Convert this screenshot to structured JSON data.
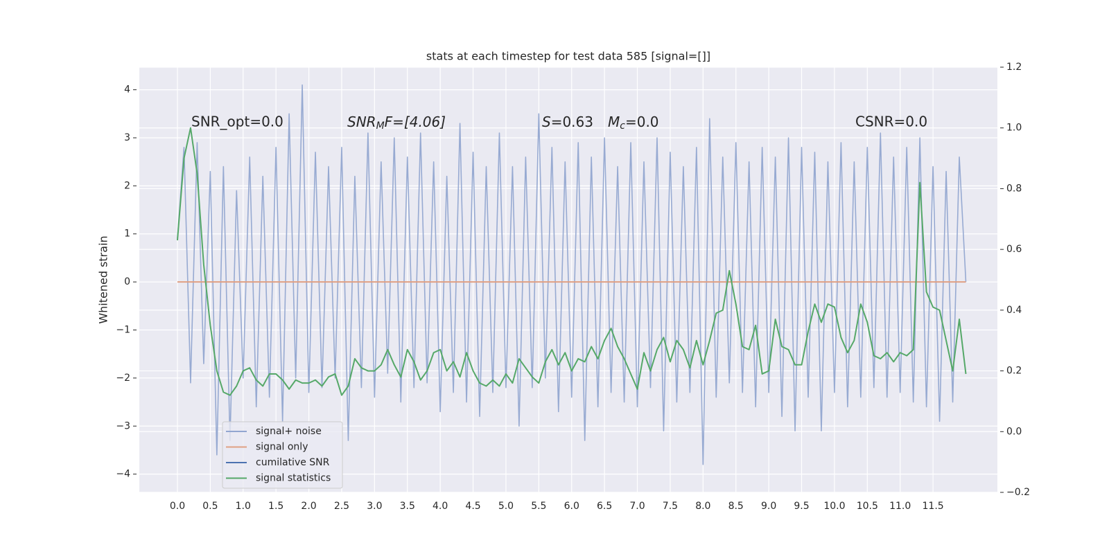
{
  "chart_data": {
    "type": "line",
    "title": "stats at each timestep for test data 585 [signal=[]]",
    "ylabel": "Whitened strain",
    "annotations": {
      "snr_opt": "SNR_opt=0.0",
      "snr_mf": [
        "SNR",
        "M",
        "F=[4.06]"
      ],
      "s": [
        "S",
        "=0.63"
      ],
      "mc": [
        "M",
        "c",
        "=0.0"
      ],
      "csnr": "CSNR=0.0"
    },
    "x": [
      0,
      0.1,
      0.2,
      0.3,
      0.4,
      0.5,
      0.6,
      0.7,
      0.8,
      0.9,
      1,
      1.1,
      1.2,
      1.3,
      1.4,
      1.5,
      1.6,
      1.7,
      1.8,
      1.9,
      2,
      2.1,
      2.2,
      2.3,
      2.4,
      2.5,
      2.6,
      2.7,
      2.8,
      2.9,
      3,
      3.1,
      3.2,
      3.3,
      3.4,
      3.5,
      3.6,
      3.7,
      3.8,
      3.9,
      4,
      4.1,
      4.2,
      4.3,
      4.4,
      4.5,
      4.6,
      4.7,
      4.8,
      4.9,
      5,
      5.1,
      5.2,
      5.3,
      5.4,
      5.5,
      5.6,
      5.7,
      5.8,
      5.9,
      6,
      6.1,
      6.2,
      6.3,
      6.4,
      6.5,
      6.6,
      6.7,
      6.8,
      6.9,
      7,
      7.1,
      7.2,
      7.3,
      7.4,
      7.5,
      7.6,
      7.7,
      7.8,
      7.9,
      8,
      8.1,
      8.2,
      8.3,
      8.4,
      8.5,
      8.6,
      8.7,
      8.8,
      8.9,
      9,
      9.1,
      9.2,
      9.3,
      9.4,
      9.5,
      9.6,
      9.7,
      9.8,
      9.9,
      10,
      10.1,
      10.2,
      10.3,
      10.4,
      10.5,
      10.6,
      10.7,
      10.8,
      10.9,
      11,
      11.1,
      11.2,
      11.3,
      11.4,
      11.5,
      11.6,
      11.7,
      11.8,
      11.9,
      12
    ],
    "series": [
      {
        "name": "signal+ noise",
        "color": "#92a6d0",
        "values": [
          0.9,
          2.8,
          -2.1,
          2.9,
          -1.7,
          2.3,
          -3.6,
          2.4,
          -3.3,
          1.9,
          -2.0,
          2.6,
          -2.6,
          2.2,
          -2.4,
          2.8,
          -2.9,
          3.5,
          -2.0,
          4.1,
          -2.3,
          2.7,
          -2.2,
          2.4,
          -2.0,
          2.8,
          -3.3,
          2.2,
          -2.2,
          3.1,
          -2.4,
          2.5,
          -1.9,
          3.0,
          -2.5,
          2.6,
          -2.2,
          3.1,
          -2.1,
          2.5,
          -2.7,
          2.2,
          -2.3,
          3.3,
          -2.5,
          2.7,
          -2.8,
          2.4,
          -2.3,
          3.1,
          -2.2,
          2.4,
          -3.0,
          2.6,
          -2.2,
          3.5,
          -2.0,
          2.8,
          -2.7,
          2.5,
          -2.4,
          2.9,
          -3.3,
          2.6,
          -2.6,
          3.0,
          -2.3,
          2.4,
          -2.5,
          2.9,
          -2.6,
          2.5,
          -2.2,
          3.0,
          -3.1,
          2.7,
          -2.5,
          2.4,
          -2.3,
          2.8,
          -3.8,
          3.4,
          -2.4,
          2.6,
          -2.1,
          2.9,
          -2.3,
          2.5,
          -2.6,
          2.8,
          -2.3,
          2.6,
          -2.8,
          3.0,
          -3.1,
          2.8,
          -2.4,
          2.7,
          -3.1,
          2.5,
          -2.3,
          2.9,
          -2.6,
          2.5,
          -2.4,
          2.8,
          -2.2,
          3.1,
          -2.4,
          2.6,
          -2.3,
          2.8,
          -2.5,
          3.0,
          -2.6,
          2.4,
          -2.9,
          2.3,
          -2.5,
          2.6,
          0.0
        ]
      },
      {
        "name": "signal only",
        "color": "#e0a083",
        "values": [
          0,
          0,
          0,
          0,
          0,
          0,
          0,
          0,
          0,
          0,
          0,
          0,
          0,
          0,
          0,
          0,
          0,
          0,
          0,
          0,
          0,
          0,
          0,
          0,
          0,
          0,
          0,
          0,
          0,
          0,
          0,
          0,
          0,
          0,
          0,
          0,
          0,
          0,
          0,
          0,
          0,
          0,
          0,
          0,
          0,
          0,
          0,
          0,
          0,
          0,
          0,
          0,
          0,
          0,
          0,
          0,
          0,
          0,
          0,
          0,
          0,
          0,
          0,
          0,
          0,
          0,
          0,
          0,
          0,
          0,
          0,
          0,
          0,
          0,
          0,
          0,
          0,
          0,
          0,
          0,
          0,
          0,
          0,
          0,
          0,
          0,
          0,
          0,
          0,
          0,
          0,
          0,
          0,
          0,
          0,
          0,
          0,
          0,
          0,
          0,
          0,
          0,
          0,
          0,
          0,
          0,
          0,
          0,
          0,
          0,
          0,
          0,
          0,
          0,
          0,
          0,
          0,
          0,
          0,
          0,
          0
        ]
      },
      {
        "name": "cumilative SNR",
        "color": "#4c72b0"
      },
      {
        "name": "signal statistics",
        "color": "#55a868",
        "axis": "y2",
        "values": [
          0.63,
          0.9,
          1.0,
          0.85,
          0.55,
          0.35,
          0.2,
          0.13,
          0.12,
          0.15,
          0.2,
          0.21,
          0.17,
          0.15,
          0.19,
          0.19,
          0.17,
          0.14,
          0.17,
          0.16,
          0.16,
          0.17,
          0.15,
          0.18,
          0.19,
          0.12,
          0.15,
          0.24,
          0.21,
          0.2,
          0.2,
          0.22,
          0.27,
          0.22,
          0.18,
          0.27,
          0.23,
          0.17,
          0.2,
          0.26,
          0.27,
          0.2,
          0.23,
          0.18,
          0.26,
          0.2,
          0.16,
          0.15,
          0.17,
          0.15,
          0.19,
          0.16,
          0.24,
          0.21,
          0.18,
          0.16,
          0.23,
          0.27,
          0.22,
          0.26,
          0.2,
          0.24,
          0.23,
          0.28,
          0.24,
          0.3,
          0.34,
          0.28,
          0.24,
          0.19,
          0.14,
          0.26,
          0.2,
          0.27,
          0.31,
          0.23,
          0.3,
          0.27,
          0.21,
          0.3,
          0.22,
          0.3,
          0.39,
          0.4,
          0.53,
          0.42,
          0.28,
          0.27,
          0.35,
          0.19,
          0.2,
          0.37,
          0.28,
          0.27,
          0.22,
          0.22,
          0.33,
          0.42,
          0.36,
          0.42,
          0.41,
          0.31,
          0.26,
          0.3,
          0.42,
          0.36,
          0.25,
          0.24,
          0.26,
          0.23,
          0.26,
          0.25,
          0.27,
          0.82,
          0.46,
          0.41,
          0.4,
          0.3,
          0.2,
          0.37,
          0.19
        ]
      }
    ],
    "xlim": [
      -0.58,
      12.48
    ],
    "xticks": [
      {
        "value": 0,
        "label": "0.0"
      },
      0.5,
      {
        "value": 1,
        "label": "1.0"
      },
      1.5,
      {
        "value": 2,
        "label": "2.0"
      },
      2.5,
      {
        "value": 3,
        "label": "3.0"
      },
      3.5,
      {
        "value": 4,
        "label": "4.0"
      },
      4.5,
      {
        "value": 5,
        "label": "5.0"
      },
      5.5,
      {
        "value": 6,
        "label": "6.0"
      },
      6.5,
      {
        "value": 7,
        "label": "7.0"
      },
      7.5,
      {
        "value": 8,
        "label": "8.0"
      },
      8.5,
      {
        "value": 9,
        "label": "9.0"
      },
      9.5,
      {
        "value": 10,
        "label": "10.0"
      },
      10.5,
      {
        "value": 11,
        "label": "11.0"
      },
      11.5
    ],
    "ylim": [
      -4.38,
      4.47
    ],
    "yticks": [
      {
        "value": -4,
        "label": "−4"
      },
      {
        "value": -3,
        "label": "−3"
      },
      {
        "value": -2,
        "label": "−2"
      },
      {
        "value": -1,
        "label": "−1"
      },
      0,
      1,
      2,
      3,
      4
    ],
    "y2lim": [
      -0.2,
      1.2
    ],
    "y2ticks": [
      {
        "value": -0.2,
        "label": "−0.2"
      },
      {
        "value": 0,
        "label": "0.0"
      },
      0.2,
      0.4,
      0.6,
      0.8,
      {
        "value": 1,
        "label": "1.0"
      },
      1.2
    ],
    "grid": true,
    "legend": "lower left"
  }
}
